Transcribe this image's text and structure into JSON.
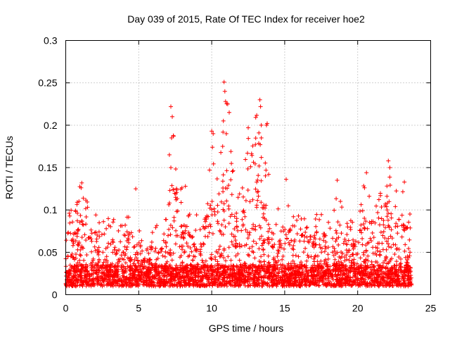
{
  "chart_data": {
    "type": "scatter",
    "title": "Day 039 of 2015, Rate Of TEC Index for receiver hoe2",
    "xlabel": "GPS time / hours",
    "ylabel": "ROTI / TECUs",
    "xlim": [
      0,
      25
    ],
    "ylim": [
      0,
      0.3
    ],
    "x_ticks": [
      0,
      5,
      10,
      15,
      20,
      25
    ],
    "x_tick_labels": [
      "0",
      "5",
      "10",
      "15",
      "20",
      "25"
    ],
    "y_ticks": [
      0,
      0.05,
      0.1,
      0.15,
      0.2,
      0.25,
      0.3
    ],
    "y_tick_labels": [
      "0",
      "0.05",
      "0.1",
      "0.15",
      "0.2",
      "0.25",
      "0.3"
    ],
    "grid": true,
    "legend": "none",
    "marker": "plus",
    "color": "#ff0000",
    "envelope": {
      "description": "approximate upper envelope of ROTI values per hour",
      "hours": [
        0,
        0.5,
        1,
        1.5,
        2,
        2.5,
        3,
        3.5,
        4,
        4.5,
        5,
        5.5,
        6,
        6.5,
        7,
        7.5,
        8,
        8.5,
        9,
        9.5,
        10,
        10.5,
        11,
        11.5,
        12,
        12.5,
        13,
        13.5,
        14,
        14.5,
        15,
        15.5,
        16,
        16.5,
        17,
        17.5,
        18,
        18.5,
        19,
        19.5,
        20,
        20.5,
        21,
        21.5,
        22,
        22.5,
        23,
        23.5
      ],
      "upper": [
        0.11,
        0.1,
        0.13,
        0.11,
        0.1,
        0.1,
        0.09,
        0.09,
        0.09,
        0.1,
        0.08,
        0.05,
        0.09,
        0.08,
        0.1,
        0.22,
        0.12,
        0.1,
        0.1,
        0.11,
        0.19,
        0.15,
        0.25,
        0.15,
        0.12,
        0.2,
        0.23,
        0.2,
        0.12,
        0.1,
        0.13,
        0.1,
        0.1,
        0.09,
        0.1,
        0.1,
        0.09,
        0.13,
        0.1,
        0.09,
        0.08,
        0.14,
        0.12,
        0.13,
        0.16,
        0.12,
        0.13,
        0.12
      ],
      "baseline": 0.01
    },
    "highlights": [
      {
        "x": 7.2,
        "y": 0.222
      },
      {
        "x": 7.3,
        "y": 0.21
      },
      {
        "x": 7.25,
        "y": 0.185
      },
      {
        "x": 7.1,
        "y": 0.165
      },
      {
        "x": 7.2,
        "y": 0.15
      },
      {
        "x": 10.0,
        "y": 0.193
      },
      {
        "x": 10.1,
        "y": 0.19
      },
      {
        "x": 10.85,
        "y": 0.251
      },
      {
        "x": 10.9,
        "y": 0.24
      },
      {
        "x": 10.95,
        "y": 0.228
      },
      {
        "x": 11.1,
        "y": 0.225
      },
      {
        "x": 11.2,
        "y": 0.215
      },
      {
        "x": 10.8,
        "y": 0.205
      },
      {
        "x": 11.0,
        "y": 0.19
      },
      {
        "x": 10.75,
        "y": 0.175
      },
      {
        "x": 12.5,
        "y": 0.197
      },
      {
        "x": 12.45,
        "y": 0.167
      },
      {
        "x": 13.3,
        "y": 0.23
      },
      {
        "x": 13.35,
        "y": 0.222
      },
      {
        "x": 13.4,
        "y": 0.185
      },
      {
        "x": 13.8,
        "y": 0.202
      },
      {
        "x": 13.75,
        "y": 0.2
      },
      {
        "x": 13.4,
        "y": 0.162
      },
      {
        "x": 13.9,
        "y": 0.142
      },
      {
        "x": 20.6,
        "y": 0.144
      },
      {
        "x": 22.1,
        "y": 0.158
      },
      {
        "x": 22.2,
        "y": 0.15
      },
      {
        "x": 1.1,
        "y": 0.132
      },
      {
        "x": 4.8,
        "y": 0.125
      },
      {
        "x": 8.2,
        "y": 0.128
      },
      {
        "x": 15.1,
        "y": 0.136
      },
      {
        "x": 18.6,
        "y": 0.135
      },
      {
        "x": 23.2,
        "y": 0.133
      }
    ]
  }
}
